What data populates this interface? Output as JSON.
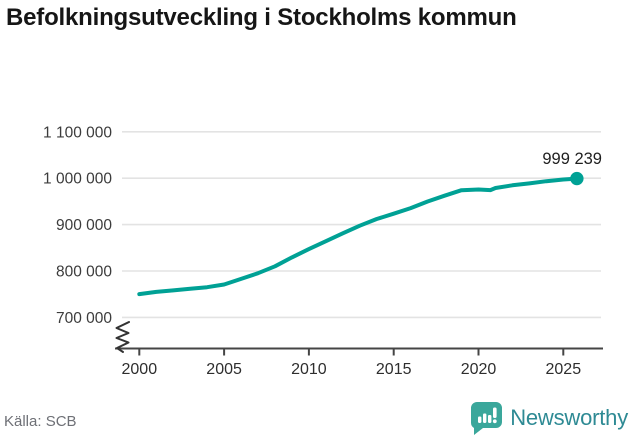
{
  "header": {
    "title": "Befolkningsutveckling i Stockholms kommun"
  },
  "footer": {
    "source": "Källa: SCB",
    "brand": "Newsworthy",
    "brand_icon": "newsworthy-speech-bubble-bar-chart-icon"
  },
  "colors": {
    "line": "#00a195",
    "end_dot": "#00a195",
    "grid": "#e3e3e3",
    "axis": "#454545",
    "tick_label": "#3c3c3c",
    "title": "#161616",
    "end_label": "#1f1f1f",
    "source_text": "#6e7076",
    "brand_icon": "#3aa79b",
    "brand_text": "#2e8a94"
  },
  "chart_data": {
    "type": "line",
    "title": "Befolkningsutveckling i Stockholms kommun",
    "xlabel": "",
    "ylabel": "",
    "x": [
      2000,
      2001,
      2002,
      2003,
      2004,
      2005,
      2006,
      2007,
      2008,
      2009,
      2010,
      2011,
      2012,
      2013,
      2014,
      2015,
      2016,
      2017,
      2018,
      2019,
      2020,
      2020.7,
      2021,
      2022,
      2023,
      2024,
      2025,
      2025.8
    ],
    "values": [
      750300,
      754900,
      758100,
      761700,
      765000,
      771000,
      782900,
      795200,
      810100,
      829400,
      847100,
      864300,
      881200,
      897700,
      912000,
      923500,
      935600,
      949800,
      962200,
      974100,
      975600,
      974300,
      978800,
      984700,
      988900,
      993600,
      997100,
      999239
    ],
    "series_name": "Befolkning i Stockholms kommun",
    "end_value": 999239,
    "end_label": "999 239",
    "ytick_values": [
      1100000,
      1000000,
      900000,
      800000,
      700000
    ],
    "ytick_labels": [
      "1 100 000",
      "1 000 000",
      "900 000",
      "800 000",
      "700 000"
    ],
    "xtick_values": [
      2000,
      2005,
      2010,
      2015,
      2020,
      2025
    ],
    "xtick_labels": [
      "2000",
      "2005",
      "2010",
      "2015",
      "2020",
      "2025"
    ],
    "ylim": [
      700000,
      1100000
    ],
    "xlim": [
      2000,
      2026
    ],
    "grid": "horizontal",
    "axis_break": true,
    "legend": "none",
    "source": "SCB"
  }
}
